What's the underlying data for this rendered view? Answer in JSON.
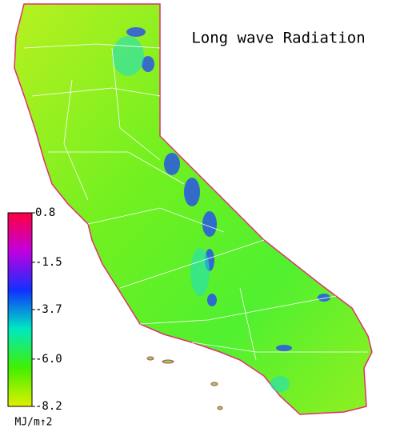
{
  "title": "Long wave Radiation",
  "colorbar": {
    "lim": [
      -8.2,
      0.8
    ],
    "ticks": [
      0.8,
      -1.5,
      -3.7,
      {
        "value": -6,
        "label": "-6.0"
      },
      -8.2
    ],
    "unit": "MJ/m↑2",
    "colors": [
      "#e0f000",
      "#40f000",
      "#00e8c0",
      "#1030ff",
      "#c000e0",
      "#ff0040"
    ]
  }
}
